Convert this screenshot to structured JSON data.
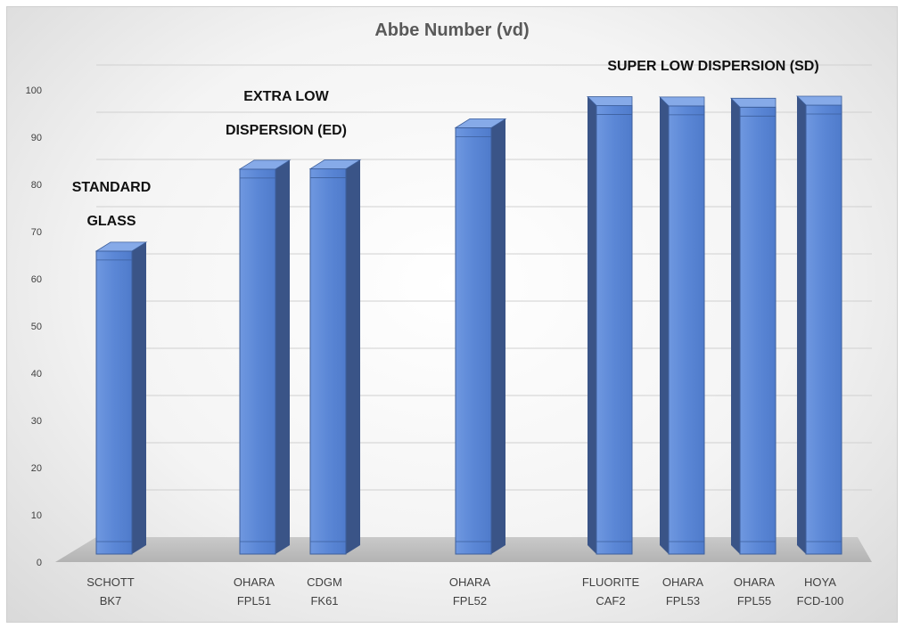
{
  "chart_data": {
    "type": "bar",
    "title": "Abbe Number (vd)",
    "xlabel": "",
    "ylabel": "",
    "ylim": [
      0,
      100
    ],
    "yticks": [
      0,
      10,
      20,
      30,
      40,
      50,
      60,
      70,
      80,
      90,
      100
    ],
    "grid": true,
    "categories": [
      [
        "SCHOTT",
        "BK7"
      ],
      [
        "OHARA",
        "FPL51"
      ],
      [
        "CDGM",
        "FK61"
      ],
      [
        "OHARA",
        "FPL52"
      ],
      [
        "FLUORITE",
        "CAF2"
      ],
      [
        "OHARA",
        "FPL53"
      ],
      [
        "OHARA",
        "FPL55"
      ],
      [
        "HOYA",
        "FCD-100"
      ]
    ],
    "values": [
      64.17,
      81.54,
      81.59,
      90.3,
      94.99,
      94.93,
      94.66,
      95.1
    ],
    "annotations": [
      {
        "lines": [
          "STANDARD",
          "GLASS"
        ]
      },
      {
        "lines": [
          "EXTRA LOW",
          "DISPERSION (ED)"
        ]
      },
      {
        "lines": [
          "SUPER LOW DISPERSION (SD)"
        ]
      }
    ],
    "colors": {
      "bar_front": "#5b87d6",
      "bar_front_light": "#7aa1e6",
      "bar_side": "#3a5487",
      "bar_top": "#86aae8",
      "floor": "#bdbdbd",
      "grid": "#d0d0d0",
      "title": "#595959",
      "axis_text": "#404040"
    }
  }
}
